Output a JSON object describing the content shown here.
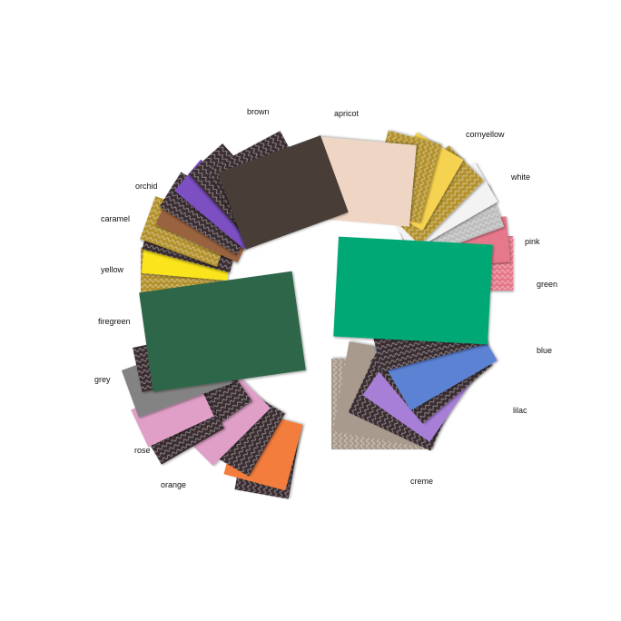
{
  "labels": {
    "brown": "brown",
    "apricot": "apricot",
    "cornyellow": "cornyellow",
    "white": "white",
    "pink": "pink",
    "green": "green",
    "blue": "blue",
    "lilac": "lilac",
    "creme": "creme",
    "orange": "orange",
    "rose": "rose",
    "grey": "grey",
    "firegreen": "firegreen",
    "yellow": "yellow",
    "caramel": "caramel",
    "orchid": "orchid"
  },
  "colors": {
    "brown": "#4a3c37",
    "apricot": "#efd5c4",
    "cornyellow": "#f6d251",
    "white": "#f3f3f3",
    "pink": "#e5788a",
    "green": "#05a874",
    "blue": "#5b82d4",
    "lilac": "#a77fd6",
    "creme": "#a89a8c",
    "orange": "#f37d3d",
    "rose": "#df9fc6",
    "grey": "#838383",
    "firegreen": "#2f6648",
    "yellow": "#fae51a",
    "caramel": "#9a6340",
    "orchid": "#7b4fc3",
    "texture_dark": "#3a2f30",
    "texture_gold": "#b3922e",
    "texture_silver": "#bdbdbd"
  }
}
